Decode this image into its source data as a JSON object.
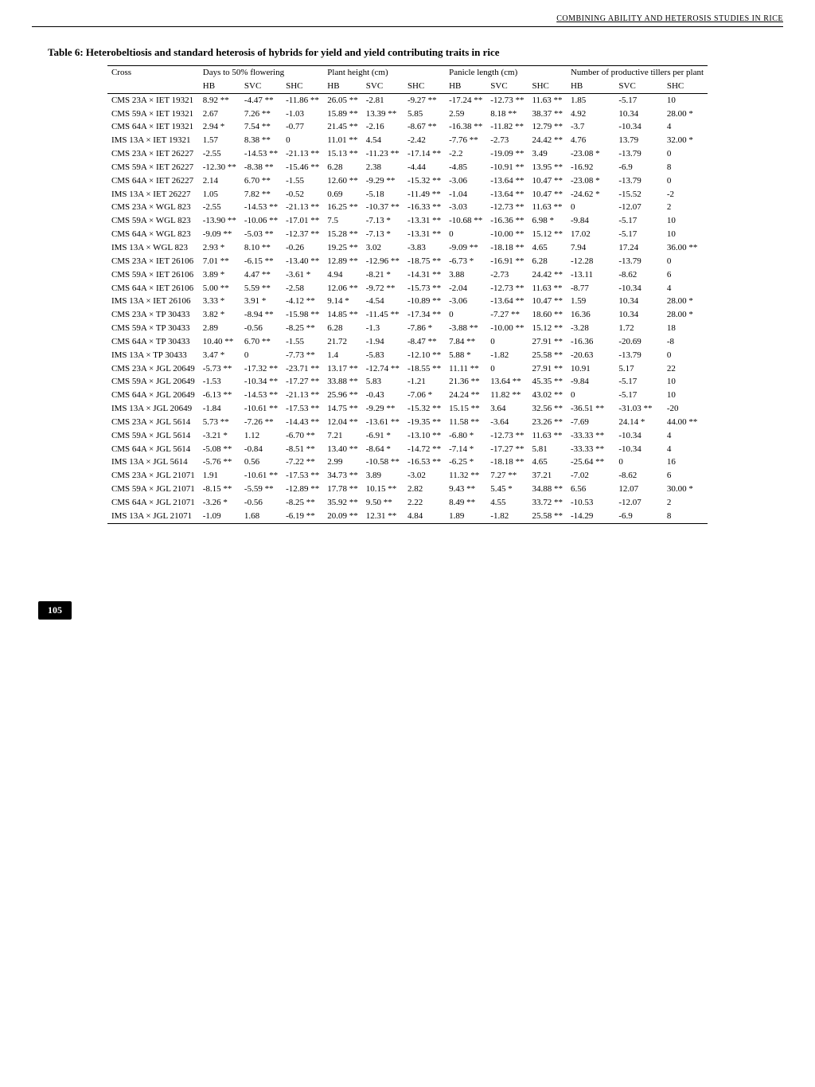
{
  "running_head": "COMBINING ABILITY AND HETEROSIS STUDIES IN RICE",
  "caption": "Table 6: Heterobeltiosis and standard heterosis of hybrids for yield and yield contributing traits in rice",
  "page_number": "105",
  "group_headers": [
    {
      "label": "Cross",
      "span": 1
    },
    {
      "label": "Days to 50% flowering",
      "span": 3
    },
    {
      "label": "Plant height (cm)",
      "span": 3
    },
    {
      "label": "Panicle length (cm)",
      "span": 3
    },
    {
      "label": "Number of productive tillers per plant",
      "span": 3
    }
  ],
  "sub_headers": [
    "",
    "HB",
    "SVC",
    "SHC",
    "HB",
    "SVC",
    "SHC",
    "HB",
    "SVC",
    "SHC",
    "HB",
    "SVC",
    "SHC"
  ],
  "rows": [
    [
      "CMS 23A × IET 19321",
      "8.92 **",
      "-4.47 **",
      "-11.86 **",
      "26.05 **",
      "-2.81",
      "-9.27 **",
      "-17.24 **",
      "-12.73 **",
      "11.63 **",
      "1.85",
      "-5.17",
      "10"
    ],
    [
      "CMS 59A × IET 19321",
      "2.67",
      "7.26 **",
      "-1.03",
      "15.89 **",
      "13.39 **",
      "5.85",
      "2.59",
      "8.18 **",
      "38.37 **",
      "4.92",
      "10.34",
      "28.00 *"
    ],
    [
      "CMS 64A × IET 19321",
      "2.94 *",
      "7.54 **",
      "-0.77",
      "21.45 **",
      "-2.16",
      "-8.67 **",
      "-16.38 **",
      "-11.82 **",
      "12.79 **",
      "-3.7",
      "-10.34",
      "4"
    ],
    [
      "IMS 13A × IET 19321",
      "1.57",
      "8.38 **",
      "0",
      "11.01 **",
      "4.54",
      "-2.42",
      "-7.76 **",
      "-2.73",
      "24.42 **",
      "4.76",
      "13.79",
      "32.00 *"
    ],
    [
      "CMS 23A × IET 26227",
      "-2.55",
      "-14.53 **",
      "-21.13 **",
      "15.13 **",
      "-11.23 **",
      "-17.14 **",
      "-2.2",
      "-19.09 **",
      "3.49",
      "-23.08 *",
      "-13.79",
      "0"
    ],
    [
      "CMS 59A × IET 26227",
      "-12.30 **",
      "-8.38 **",
      "-15.46 **",
      "6.28",
      "2.38",
      "-4.44",
      "-4.85",
      "-10.91 **",
      "13.95 **",
      "-16.92",
      "-6.9",
      "8"
    ],
    [
      "CMS 64A × IET 26227",
      "2.14",
      "6.70 **",
      "-1.55",
      "12.60 **",
      "-9.29 **",
      "-15.32 **",
      "-3.06",
      "-13.64 **",
      "10.47 **",
      "-23.08 *",
      "-13.79",
      "0"
    ],
    [
      "IMS 13A × IET 26227",
      "1.05",
      "7.82 **",
      "-0.52",
      "0.69",
      "-5.18",
      "-11.49 **",
      "-1.04",
      "-13.64 **",
      "10.47 **",
      "-24.62 *",
      "-15.52",
      "-2"
    ],
    [
      "CMS 23A × WGL 823",
      "-2.55",
      "-14.53 **",
      "-21.13 **",
      "16.25 **",
      "-10.37 **",
      "-16.33 **",
      "-3.03",
      "-12.73 **",
      "11.63 **",
      "0",
      "-12.07",
      "2"
    ],
    [
      "CMS 59A × WGL 823",
      "-13.90 **",
      "-10.06 **",
      "-17.01 **",
      "7.5",
      "-7.13 *",
      "-13.31 **",
      "-10.68 **",
      "-16.36 **",
      "6.98 *",
      "-9.84",
      "-5.17",
      "10"
    ],
    [
      "CMS 64A × WGL 823",
      "-9.09 **",
      "-5.03 **",
      "-12.37 **",
      "15.28 **",
      "-7.13 *",
      "-13.31 **",
      "0",
      "-10.00 **",
      "15.12 **",
      "17.02",
      "-5.17",
      "10"
    ],
    [
      "IMS 13A × WGL 823",
      "2.93 *",
      "8.10 **",
      "-0.26",
      "19.25 **",
      "3.02",
      "-3.83",
      "-9.09 **",
      "-18.18 **",
      "4.65",
      "7.94",
      "17.24",
      "36.00 **"
    ],
    [
      "CMS 23A × IET 26106",
      "7.01 **",
      "-6.15 **",
      "-13.40 **",
      "12.89 **",
      "-12.96 **",
      "-18.75 **",
      "-6.73 *",
      "-16.91 **",
      "6.28",
      "-12.28",
      "-13.79",
      "0"
    ],
    [
      "CMS 59A × IET 26106",
      "3.89 *",
      "4.47 **",
      "-3.61 *",
      "4.94",
      "-8.21 *",
      "-14.31 **",
      "3.88",
      "-2.73",
      "24.42 **",
      "-13.11",
      "-8.62",
      "6"
    ],
    [
      "CMS 64A × IET 26106",
      "5.00 **",
      "5.59 **",
      "-2.58",
      "12.06 **",
      "-9.72 **",
      "-15.73 **",
      "-2.04",
      "-12.73 **",
      "11.63 **",
      "-8.77",
      "-10.34",
      "4"
    ],
    [
      "IMS 13A × IET 26106",
      "3.33 *",
      "3.91 *",
      "-4.12 **",
      "9.14 *",
      "-4.54",
      "-10.89 **",
      "-3.06",
      "-13.64 **",
      "10.47 **",
      "1.59",
      "10.34",
      "28.00 *"
    ],
    [
      "CMS 23A × TP 30433",
      "3.82 *",
      "-8.94 **",
      "-15.98 **",
      "14.85 **",
      "-11.45 **",
      "-17.34 **",
      "0",
      "-7.27 **",
      "18.60 **",
      "16.36",
      "10.34",
      "28.00 *"
    ],
    [
      "CMS 59A × TP 30433",
      "2.89",
      "-0.56",
      "-8.25 **",
      "6.28",
      "-1.3",
      "-7.86 *",
      "-3.88 **",
      "-10.00 **",
      "15.12 **",
      "-3.28",
      "1.72",
      "18"
    ],
    [
      "CMS 64A × TP 30433",
      "10.40 **",
      "6.70 **",
      "-1.55",
      "21.72",
      "-1.94",
      "-8.47 **",
      "7.84 **",
      "0",
      "27.91 **",
      "-16.36",
      "-20.69",
      "-8"
    ],
    [
      "IMS 13A × TP 30433",
      "3.47 *",
      "0",
      "-7.73 **",
      "1.4",
      "-5.83",
      "-12.10 **",
      "5.88 *",
      "-1.82",
      "25.58 **",
      "-20.63",
      "-13.79",
      "0"
    ],
    [
      "CMS 23A × JGL 20649",
      "-5.73 **",
      "-17.32 **",
      "-23.71 **",
      "13.17 **",
      "-12.74 **",
      "-18.55 **",
      "11.11 **",
      "0",
      "27.91 **",
      "10.91",
      "5.17",
      "22"
    ],
    [
      "CMS 59A × JGL 20649",
      "-1.53",
      "-10.34 **",
      "-17.27 **",
      "33.88 **",
      "5.83",
      "-1.21",
      "21.36 **",
      "13.64 **",
      "45.35 **",
      "-9.84",
      "-5.17",
      "10"
    ],
    [
      "CMS 64A × JGL 20649",
      "-6.13 **",
      "-14.53 **",
      "-21.13 **",
      "25.96 **",
      "-0.43",
      "-7.06 *",
      "24.24 **",
      "11.82 **",
      "43.02 **",
      "0",
      "-5.17",
      "10"
    ],
    [
      "IMS 13A × JGL 20649",
      "-1.84",
      "-10.61 **",
      "-17.53 **",
      "14.75 **",
      "-9.29 **",
      "-15.32 **",
      "15.15 **",
      "3.64",
      "32.56 **",
      "-36.51 **",
      "-31.03 **",
      "-20"
    ],
    [
      "CMS 23A × JGL 5614",
      "5.73 **",
      "-7.26 **",
      "-14.43 **",
      "12.04 **",
      "-13.61 **",
      "-19.35 **",
      "11.58 **",
      "-3.64",
      "23.26 **",
      "-7.69",
      "24.14 *",
      "44.00 **"
    ],
    [
      "CMS 59A × JGL 5614",
      "-3.21 *",
      "1.12",
      "-6.70 **",
      "7.21",
      "-6.91 *",
      "-13.10 **",
      "-6.80 *",
      "-12.73 **",
      "11.63 **",
      "-33.33 **",
      "-10.34",
      "4"
    ],
    [
      "CMS 64A × JGL 5614",
      "-5.08 **",
      "-0.84",
      "-8.51 **",
      "13.40 **",
      "-8.64 *",
      "-14.72 **",
      "-7.14 *",
      "-17.27 **",
      "5.81",
      "-33.33 **",
      "-10.34",
      "4"
    ],
    [
      "IMS 13A × JGL 5614",
      "-5.76 **",
      "0.56",
      "-7.22 **",
      "2.99",
      "-10.58 **",
      "-16.53 **",
      "-6.25 *",
      "-18.18 **",
      "4.65",
      "-25.64 **",
      "0",
      "16"
    ],
    [
      "CMS 23A × JGL 21071",
      "1.91",
      "-10.61 **",
      "-17.53 **",
      "34.73 **",
      "3.89",
      "-3.02",
      "11.32 **",
      "7.27 **",
      "37.21",
      "-7.02",
      "-8.62",
      "6"
    ],
    [
      "CMS 59A × JGL 21071",
      "-8.15 **",
      "-5.59 **",
      "-12.89 **",
      "17.78 **",
      "10.15 **",
      "2.82",
      "9.43 **",
      "5.45 *",
      "34.88 **",
      "6.56",
      "12.07",
      "30.00 *"
    ],
    [
      "CMS 64A × JGL 21071",
      "-3.26 *",
      "-0.56",
      "-8.25 **",
      "35.92 **",
      "9.50 **",
      "2.22",
      "8.49 **",
      "4.55",
      "33.72 **",
      "-10.53",
      "-12.07",
      "2"
    ],
    [
      "IMS 13A × JGL 21071",
      "-1.09",
      "1.68",
      "-6.19 **",
      "20.09 **",
      "12.31 **",
      "4.84",
      "1.89",
      "-1.82",
      "25.58 **",
      "-14.29",
      "-6.9",
      "8"
    ]
  ]
}
